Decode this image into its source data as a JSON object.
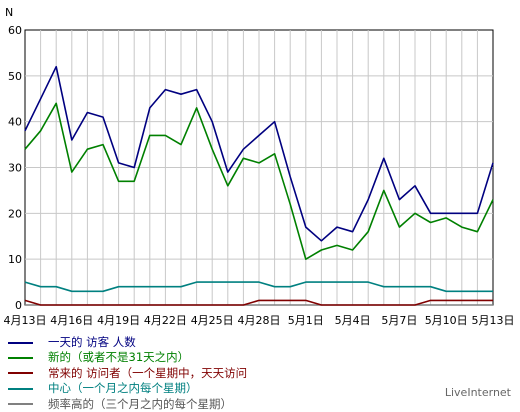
{
  "chart_data": {
    "type": "line",
    "ylabel": "N",
    "ylim": [
      0,
      60
    ],
    "yticks": [
      0,
      10,
      20,
      30,
      40,
      50,
      60
    ],
    "grid": true,
    "x": [
      "4月13日",
      "4月14日",
      "4月15日",
      "4月16日",
      "4月17日",
      "4月18日",
      "4月19日",
      "4月20日",
      "4月21日",
      "4月22日",
      "4月23日",
      "4月24日",
      "4月25日",
      "4月26日",
      "4月27日",
      "4月28日",
      "4月29日",
      "4月30日",
      "5月1日",
      "5月2日",
      "5月3日",
      "5月4日",
      "5月5日",
      "5月6日",
      "5月7日",
      "5月8日",
      "5月9日",
      "5月10日",
      "5月11日",
      "5月12日",
      "5月13日"
    ],
    "xtick_labels": [
      "4月13日",
      "4月16日",
      "4月19日",
      "4月22日",
      "4月25日",
      "4月28日",
      "5月1日",
      "5月4日",
      "5月7日",
      "5月10日",
      "5月13日"
    ],
    "series": [
      {
        "name": "一天的 访客 人数",
        "color": "#000080",
        "values": [
          38,
          45,
          52,
          36,
          42,
          41,
          31,
          30,
          43,
          47,
          46,
          47,
          40,
          29,
          34,
          37,
          40,
          28,
          17,
          14,
          17,
          16,
          23,
          32,
          23,
          26,
          20,
          20,
          20,
          20,
          31
        ]
      },
      {
        "name": "新的（或者不是31天之内）",
        "color": "#008000",
        "values": [
          34,
          38,
          44,
          29,
          34,
          35,
          27,
          27,
          37,
          37,
          35,
          43,
          34,
          26,
          32,
          31,
          33,
          22,
          10,
          12,
          13,
          12,
          16,
          25,
          17,
          20,
          18,
          19,
          17,
          16,
          23
        ]
      },
      {
        "name": "常来的 访问者（一个星期中，天天访问",
        "color": "#800000",
        "values": [
          1,
          0,
          0,
          0,
          0,
          0,
          0,
          0,
          0,
          0,
          0,
          0,
          0,
          0,
          0,
          1,
          1,
          1,
          1,
          0,
          0,
          0,
          0,
          0,
          0,
          0,
          1,
          1,
          1,
          1,
          1
        ]
      },
      {
        "name": "中心（一个月之内每个星期）",
        "color": "#008080",
        "values": [
          5,
          4,
          4,
          3,
          3,
          3,
          4,
          4,
          4,
          4,
          4,
          5,
          5,
          5,
          5,
          5,
          4,
          4,
          5,
          5,
          5,
          5,
          5,
          4,
          4,
          4,
          4,
          3,
          3,
          3,
          3
        ]
      },
      {
        "name": "频率高的（三个月之内的每个星期）",
        "color": "#808080",
        "values": [
          0,
          0,
          0,
          0,
          0,
          0,
          0,
          0,
          0,
          0,
          0,
          0,
          0,
          0,
          0,
          0,
          0,
          0,
          0,
          0,
          0,
          0,
          0,
          0,
          0,
          0,
          0,
          0,
          0,
          0,
          0
        ]
      }
    ]
  },
  "credit": "LiveInternet"
}
